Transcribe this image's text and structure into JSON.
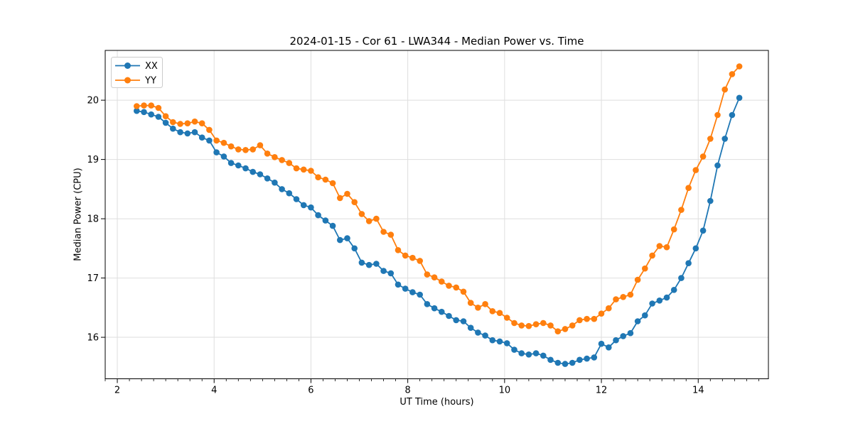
{
  "chart_data": {
    "type": "line",
    "title": "2024-01-15 - Cor 61 - LWA344 - Median Power vs. Time",
    "xlabel": "UT Time (hours)",
    "ylabel": "Median Power (CPU)",
    "xlim": [
      1.75,
      15.45
    ],
    "ylim": [
      15.3,
      20.84
    ],
    "xticks": [
      2,
      4,
      6,
      8,
      10,
      12,
      14
    ],
    "yticks": [
      16,
      17,
      18,
      19,
      20
    ],
    "x_minor_step": 0.25,
    "grid": true,
    "grid_color": "#dedede",
    "legend_position": "upper left",
    "x": [
      2.4,
      2.55,
      2.7,
      2.85,
      3.0,
      3.15,
      3.3,
      3.45,
      3.6,
      3.75,
      3.9,
      4.05,
      4.2,
      4.35,
      4.5,
      4.65,
      4.8,
      4.95,
      5.1,
      5.25,
      5.4,
      5.55,
      5.7,
      5.85,
      6.0,
      6.15,
      6.3,
      6.45,
      6.6,
      6.75,
      6.9,
      7.05,
      7.2,
      7.35,
      7.5,
      7.65,
      7.8,
      7.95,
      8.1,
      8.25,
      8.4,
      8.55,
      8.7,
      8.85,
      9.0,
      9.15,
      9.3,
      9.45,
      9.6,
      9.75,
      9.9,
      10.05,
      10.2,
      10.35,
      10.5,
      10.65,
      10.8,
      10.95,
      11.1,
      11.25,
      11.4,
      11.55,
      11.7,
      11.85,
      12.0,
      12.15,
      12.3,
      12.45,
      12.6,
      12.75,
      12.9,
      13.05,
      13.2,
      13.35,
      13.5,
      13.65,
      13.8,
      13.95,
      14.1,
      14.25,
      14.4,
      14.55,
      14.7,
      14.85
    ],
    "series": [
      {
        "name": "XX",
        "color": "#1f77b4",
        "values": [
          19.82,
          19.8,
          19.76,
          19.72,
          19.62,
          19.52,
          19.46,
          19.44,
          19.46,
          19.37,
          19.32,
          19.12,
          19.05,
          18.94,
          18.9,
          18.85,
          18.79,
          18.75,
          18.68,
          18.61,
          18.5,
          18.43,
          18.33,
          18.23,
          18.19,
          18.06,
          17.97,
          17.88,
          17.64,
          17.67,
          17.5,
          17.26,
          17.22,
          17.24,
          17.12,
          17.08,
          16.89,
          16.82,
          16.76,
          16.72,
          16.56,
          16.49,
          16.43,
          16.36,
          16.29,
          16.27,
          16.16,
          16.08,
          16.03,
          15.95,
          15.93,
          15.9,
          15.79,
          15.73,
          15.71,
          15.73,
          15.69,
          15.62,
          15.57,
          15.55,
          15.57,
          15.62,
          15.64,
          15.66,
          15.89,
          15.83,
          15.95,
          16.02,
          16.07,
          16.27,
          16.37,
          16.57,
          16.62,
          16.67,
          16.8,
          17.0,
          17.25,
          17.5,
          17.8,
          18.3,
          18.9,
          19.35,
          19.75,
          20.04
        ]
      },
      {
        "name": "YY",
        "color": "#ff7f0e",
        "values": [
          19.9,
          19.91,
          19.91,
          19.87,
          19.73,
          19.63,
          19.6,
          19.61,
          19.64,
          19.61,
          19.5,
          19.32,
          19.28,
          19.22,
          19.17,
          19.16,
          19.17,
          19.24,
          19.1,
          19.04,
          18.99,
          18.94,
          18.85,
          18.83,
          18.81,
          18.7,
          18.66,
          18.6,
          18.35,
          18.42,
          18.28,
          18.08,
          17.96,
          18.0,
          17.78,
          17.73,
          17.47,
          17.38,
          17.34,
          17.29,
          17.06,
          17.01,
          16.94,
          16.87,
          16.84,
          16.77,
          16.58,
          16.5,
          16.56,
          16.44,
          16.41,
          16.33,
          16.24,
          16.2,
          16.19,
          16.22,
          16.24,
          16.2,
          16.1,
          16.14,
          16.2,
          16.29,
          16.31,
          16.31,
          16.4,
          16.49,
          16.64,
          16.68,
          16.72,
          16.97,
          17.16,
          17.38,
          17.54,
          17.52,
          17.82,
          18.15,
          18.52,
          18.82,
          19.05,
          19.35,
          19.75,
          20.18,
          20.44,
          20.57
        ]
      }
    ]
  }
}
